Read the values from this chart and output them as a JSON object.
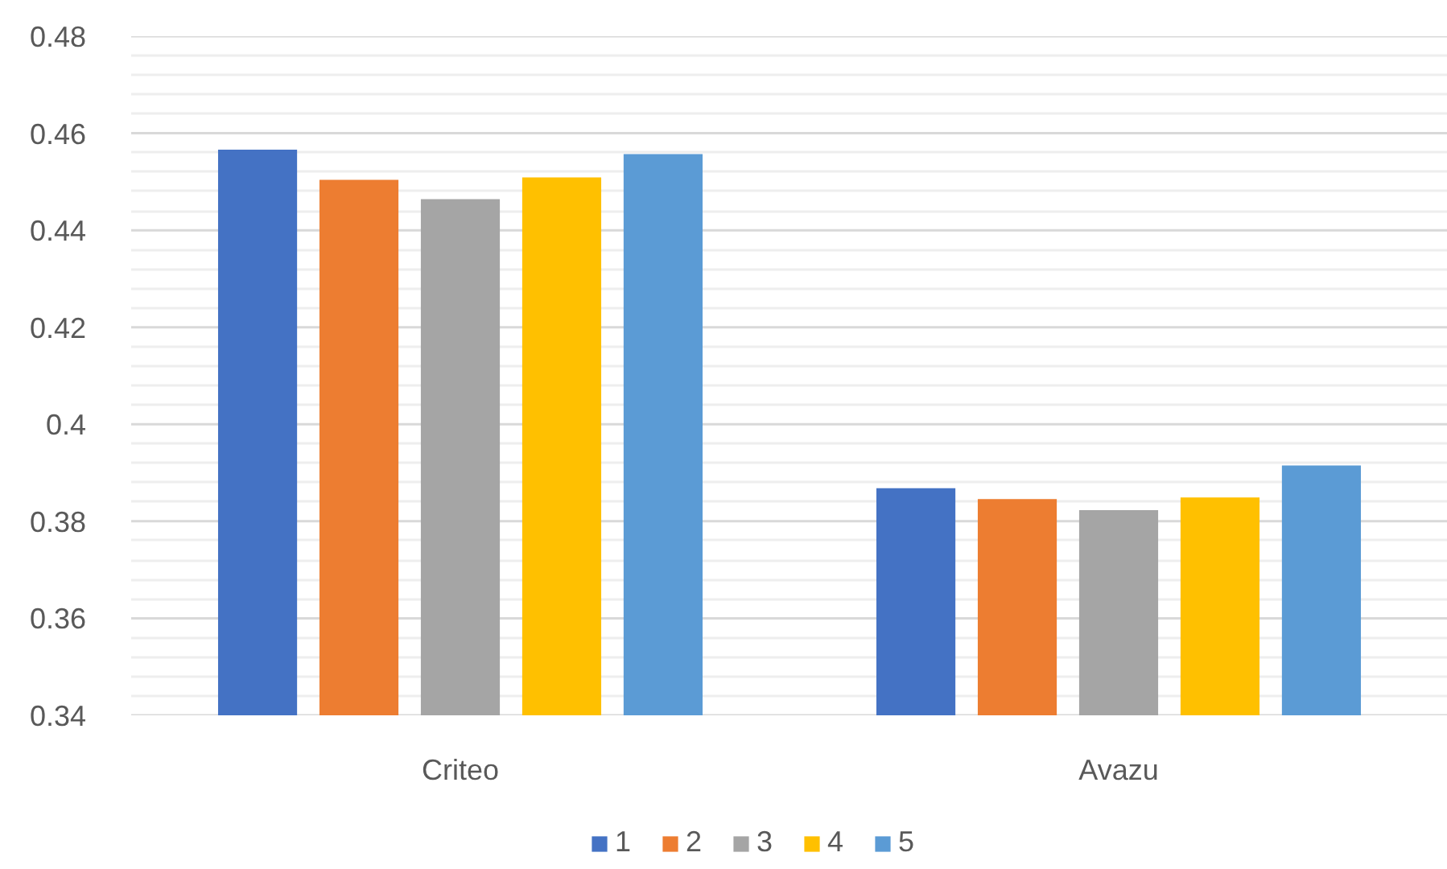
{
  "chart_data": {
    "type": "bar",
    "categories": [
      "Criteo",
      "Avazu"
    ],
    "series": [
      {
        "name": "1",
        "color": "#4472c4",
        "values": [
          0.4566,
          0.3868
        ]
      },
      {
        "name": "2",
        "color": "#ed7d31",
        "values": [
          0.4504,
          0.3846
        ]
      },
      {
        "name": "3",
        "color": "#a5a5a5",
        "values": [
          0.4464,
          0.3823
        ]
      },
      {
        "name": "4",
        "color": "#ffc000",
        "values": [
          0.4509,
          0.3849
        ]
      },
      {
        "name": "5",
        "color": "#5b9bd5",
        "values": [
          0.4557,
          0.3915
        ]
      }
    ],
    "ylim": [
      0.34,
      0.48
    ],
    "yticks": [
      0.34,
      0.36,
      0.38,
      0.4,
      0.42,
      0.44,
      0.46,
      0.48
    ],
    "grid": "y",
    "legend": "bottom"
  }
}
